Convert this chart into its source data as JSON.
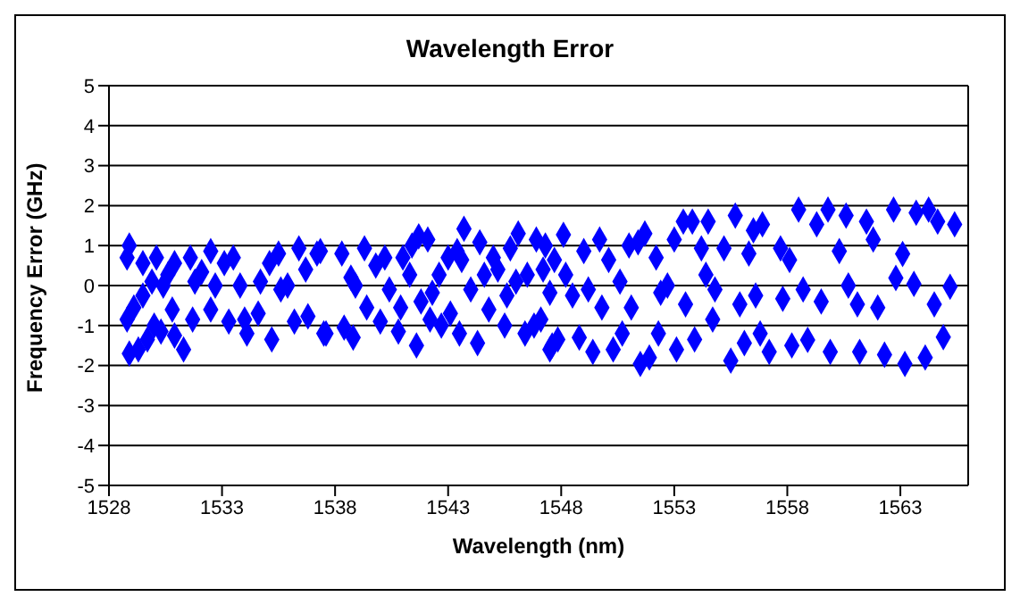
{
  "chart_data": {
    "type": "scatter",
    "title": "Wavelength Error",
    "xlabel": "Wavelength (nm)",
    "ylabel": "Frequency Error (GHz)",
    "xlim": [
      1528,
      1566
    ],
    "xticks": [
      1528,
      1533,
      1538,
      1543,
      1548,
      1553,
      1558,
      1563
    ],
    "ylim": [
      -5,
      5
    ],
    "yticks": [
      -5,
      -4,
      -3,
      -2,
      -1,
      0,
      1,
      2,
      3,
      4,
      5
    ],
    "grid": "y",
    "legend": false,
    "marker": "diamond",
    "series": [
      {
        "color": "#0000ff",
        "x": [
          1528.9,
          1528.8,
          1528.8,
          1528.9,
          1529.3,
          1529.1,
          1529.5,
          1529.5,
          1529.9,
          1530.1,
          1530,
          1529.7,
          1530.3,
          1530.4,
          1530.6,
          1530.8,
          1530.9,
          1530.9,
          1531.3,
          1531.6,
          1531.7,
          1531.8,
          1532.1,
          1532.5,
          1532.5,
          1532.7,
          1533.1,
          1533.3,
          1533.5,
          1533.8,
          1534,
          1534.1,
          1534.6,
          1534.7,
          1535.1,
          1535.2,
          1535.5,
          1535.6,
          1535.9,
          1536.2,
          1536.4,
          1536.7,
          1536.8,
          1537.2,
          1537.5,
          1537.35,
          1537.6,
          1538.3,
          1538.4,
          1538.8,
          1538.7,
          1538.9,
          1539.3,
          1539.4,
          1539.8,
          1540,
          1540.2,
          1540.4,
          1540.8,
          1540.9,
          1541,
          1541.3,
          1541.4,
          1541.6,
          1541.7,
          1541.8,
          1542.1,
          1542.2,
          1542.3,
          1542.6,
          1542.7,
          1543,
          1543.1,
          1543.4,
          1543.5,
          1543.7,
          1543.6,
          1544,
          1544.3,
          1544.4,
          1544.6,
          1544.8,
          1545,
          1545.2,
          1545.5,
          1545.6,
          1545.75,
          1546.1,
          1546,
          1546.4,
          1546.5,
          1546.8,
          1546.9,
          1547.2,
          1547.5,
          1547.5,
          1547.1,
          1547.3,
          1547.6,
          1547.85,
          1547.7,
          1548.1,
          1548.2,
          1548.5,
          1548.8,
          1549,
          1549.2,
          1549.4,
          1549.7,
          1549.8,
          1550.1,
          1550.3,
          1550.6,
          1550.7,
          1551,
          1551.1,
          1551.4,
          1551.5,
          1551.7,
          1551.9,
          1552.2,
          1552.3,
          1552.4,
          1552.7,
          1553,
          1553.1,
          1553.4,
          1553.5,
          1553.8,
          1553.9,
          1554.2,
          1554.4,
          1554.5,
          1554.7,
          1554.8,
          1555.2,
          1555.5,
          1555.7,
          1555.9,
          1556.1,
          1556.3,
          1556.5,
          1556.6,
          1556.8,
          1556.9,
          1557.2,
          1557.7,
          1557.8,
          1558.1,
          1558.2,
          1558.5,
          1558.7,
          1558.9,
          1559.3,
          1559.5,
          1559.8,
          1559.9,
          1560.3,
          1560.6,
          1560.7,
          1561.1,
          1561.2,
          1561.5,
          1561.8,
          1562,
          1562.3,
          1562.7,
          1562.8,
          1563.1,
          1563.2,
          1563.6,
          1563.7,
          1564.1,
          1564.25,
          1564.5,
          1564.65,
          1564.9,
          1565.2,
          1565.4
        ],
        "values": [
          1.0,
          0.7,
          -0.85,
          -1.7,
          -1.6,
          -0.55,
          -0.25,
          0.56,
          0.1,
          0.7,
          -1.0,
          -1.35,
          -1.15,
          0,
          0.27,
          -0.6,
          0.56,
          -1.25,
          -1.6,
          0.7,
          -0.85,
          0.1,
          0.34,
          0.86,
          -0.6,
          0,
          0.56,
          -0.9,
          0.7,
          0,
          -0.85,
          -1.2,
          -0.7,
          0.1,
          0.56,
          -1.35,
          0.8,
          -0.1,
          0,
          -0.9,
          0.93,
          0.4,
          -0.77,
          0.8,
          -1.2,
          0.86,
          -1.2,
          0.8,
          -1.05,
          -1.3,
          0.2,
          0,
          0.93,
          -0.55,
          0.5,
          -0.9,
          0.7,
          -0.1,
          -1.15,
          -0.55,
          0.7,
          0.27,
          1.0,
          -1.5,
          1.23,
          -0.4,
          1.15,
          -0.85,
          -0.18,
          0.27,
          -1.0,
          0.7,
          -0.7,
          0.86,
          -1.2,
          1.42,
          0.64,
          -0.1,
          -1.44,
          1.08,
          0.27,
          -0.6,
          0.7,
          0.4,
          -1.0,
          -0.25,
          0.93,
          1.3,
          0.1,
          -1.2,
          0.27,
          -1.0,
          1.15,
          0.4,
          -1.6,
          -0.18,
          -0.85,
          1.0,
          -1.5,
          -1.35,
          0.64,
          1.27,
          0.27,
          -0.25,
          -1.3,
          0.86,
          -0.1,
          -1.66,
          1.15,
          -0.55,
          0.64,
          -1.6,
          0.1,
          -1.2,
          1.0,
          -0.55,
          1.08,
          -1.96,
          1.3,
          -1.8,
          0.7,
          -1.2,
          -0.18,
          0,
          1.15,
          -1.6,
          1.6,
          -0.47,
          1.6,
          -1.35,
          0.93,
          0.27,
          1.6,
          -0.85,
          -0.1,
          0.93,
          -1.88,
          1.75,
          -0.47,
          -1.44,
          0.8,
          1.38,
          -0.25,
          -1.2,
          1.53,
          -1.66,
          0.93,
          -0.33,
          0.64,
          -1.5,
          1.9,
          -0.1,
          -1.36,
          1.53,
          -0.4,
          1.9,
          -1.66,
          0.86,
          1.75,
          0,
          -0.47,
          -1.66,
          1.6,
          1.15,
          -0.55,
          -1.73,
          1.9,
          0.19,
          0.79,
          -1.96,
          0.04,
          1.82,
          -1.8,
          1.9,
          -0.47,
          1.6,
          -1.29,
          -0.03,
          1.53
        ]
      }
    ]
  }
}
